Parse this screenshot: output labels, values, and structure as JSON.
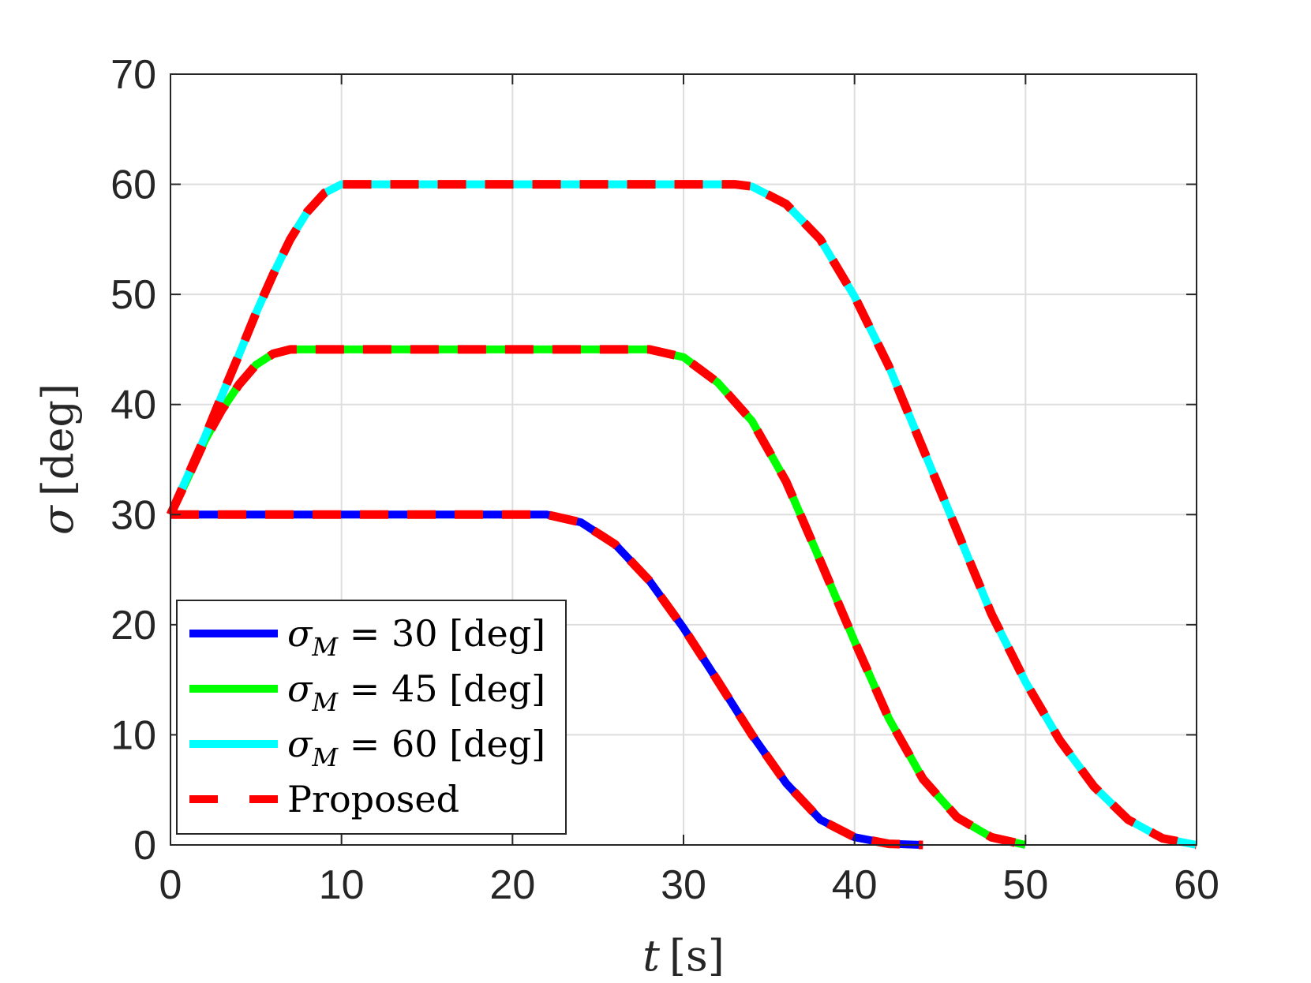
{
  "chart_data": {
    "type": "line",
    "title": "",
    "xlabel": {
      "var": "t",
      "unit": "[s]"
    },
    "ylabel": {
      "var": "σ",
      "unit": "[deg]"
    },
    "xlim": [
      0,
      60
    ],
    "ylim": [
      0,
      70
    ],
    "xticks": [
      0,
      10,
      20,
      30,
      40,
      50,
      60
    ],
    "yticks": [
      0,
      10,
      20,
      30,
      40,
      50,
      60,
      70
    ],
    "xtick_labels": [
      "0",
      "10",
      "20",
      "30",
      "40",
      "50",
      "60"
    ],
    "ytick_labels": [
      "0",
      "10",
      "20",
      "30",
      "40",
      "50",
      "60",
      "70"
    ],
    "grid": true,
    "legend_position": "bottom-left",
    "series": [
      {
        "name": "σM = 30 [deg]",
        "legend": {
          "var": "σ",
          "sub": "M",
          "rest": " = 30 [deg]"
        },
        "color": "#0000ff",
        "style": "solid",
        "x": [
          0,
          5,
          10,
          15,
          22,
          24,
          26,
          28,
          30,
          32,
          34,
          36,
          38,
          40,
          42,
          44
        ],
        "y": [
          30,
          30,
          30,
          30,
          30,
          29.3,
          27.3,
          24.0,
          19.7,
          14.9,
          10.0,
          5.6,
          2.3,
          0.7,
          0.1,
          0
        ]
      },
      {
        "name": "σM = 45 [deg]",
        "legend": {
          "var": "σ",
          "sub": "M",
          "rest": " = 45 [deg]"
        },
        "color": "#00ff00",
        "style": "solid",
        "x": [
          0,
          1,
          2,
          3,
          4,
          5,
          6,
          7,
          10,
          15,
          20,
          25,
          28,
          30,
          32,
          34,
          36,
          38,
          40,
          42,
          44,
          46,
          48,
          50
        ],
        "y": [
          30,
          33.3,
          36.7,
          39.5,
          41.8,
          43.6,
          44.6,
          45,
          45,
          45,
          45,
          45,
          45,
          44.3,
          42.0,
          38.5,
          33.0,
          25.8,
          18.5,
          11.5,
          6.0,
          2.5,
          0.7,
          0
        ]
      },
      {
        "name": "σM = 60 [deg]",
        "legend": {
          "var": "σ",
          "sub": "M",
          "rest": " = 60 [deg]"
        },
        "color": "#00ffff",
        "style": "solid",
        "x": [
          0,
          1,
          2,
          3,
          4,
          5,
          6,
          7,
          8,
          9,
          10,
          11,
          15,
          20,
          25,
          30,
          33,
          34,
          36,
          38,
          40,
          42,
          44,
          46,
          48,
          50,
          52,
          54,
          56,
          58,
          60
        ],
        "y": [
          30,
          33.5,
          37.0,
          40.8,
          44.5,
          48.3,
          51.8,
          55.0,
          57.5,
          59.2,
          60,
          60,
          60,
          60,
          60,
          60,
          60,
          59.8,
          58.2,
          55.0,
          49.8,
          43.5,
          36.0,
          28.5,
          21.0,
          14.8,
          9.5,
          5.3,
          2.3,
          0.6,
          0
        ]
      },
      {
        "name": "Proposed",
        "legend": {
          "var": "",
          "sub": "",
          "rest": "Proposed"
        },
        "color": "#ff0000",
        "style": "dashed",
        "curves": [
          {
            "x": [
              0,
              5,
              10,
              15,
              22,
              24,
              26,
              28,
              30,
              32,
              34,
              36,
              38,
              40,
              42,
              44
            ],
            "y": [
              30,
              30,
              30,
              30,
              30,
              29.3,
              27.3,
              24.0,
              19.7,
              14.9,
              10.0,
              5.6,
              2.3,
              0.7,
              0.1,
              0
            ]
          },
          {
            "x": [
              0,
              1,
              2,
              3,
              4,
              5,
              6,
              7,
              10,
              15,
              20,
              25,
              28,
              30,
              32,
              34,
              36,
              38,
              40,
              42,
              44,
              46,
              48,
              50
            ],
            "y": [
              30,
              33.3,
              36.7,
              39.5,
              41.8,
              43.6,
              44.6,
              45,
              45,
              45,
              45,
              45,
              45,
              44.3,
              42.0,
              38.5,
              33.0,
              25.8,
              18.5,
              11.5,
              6.0,
              2.5,
              0.7,
              0
            ]
          },
          {
            "x": [
              0,
              1,
              2,
              3,
              4,
              5,
              6,
              7,
              8,
              9,
              10,
              11,
              15,
              20,
              25,
              30,
              33,
              34,
              36,
              38,
              40,
              42,
              44,
              46,
              48,
              50,
              52,
              54,
              56,
              58,
              60
            ],
            "y": [
              30,
              33.5,
              37.0,
              40.8,
              44.5,
              48.3,
              51.8,
              55.0,
              57.5,
              59.2,
              60,
              60,
              60,
              60,
              60,
              60,
              60,
              59.8,
              58.2,
              55.0,
              49.8,
              43.5,
              36.0,
              28.5,
              21.0,
              14.8,
              9.5,
              5.3,
              2.3,
              0.6,
              0
            ]
          }
        ]
      }
    ]
  }
}
